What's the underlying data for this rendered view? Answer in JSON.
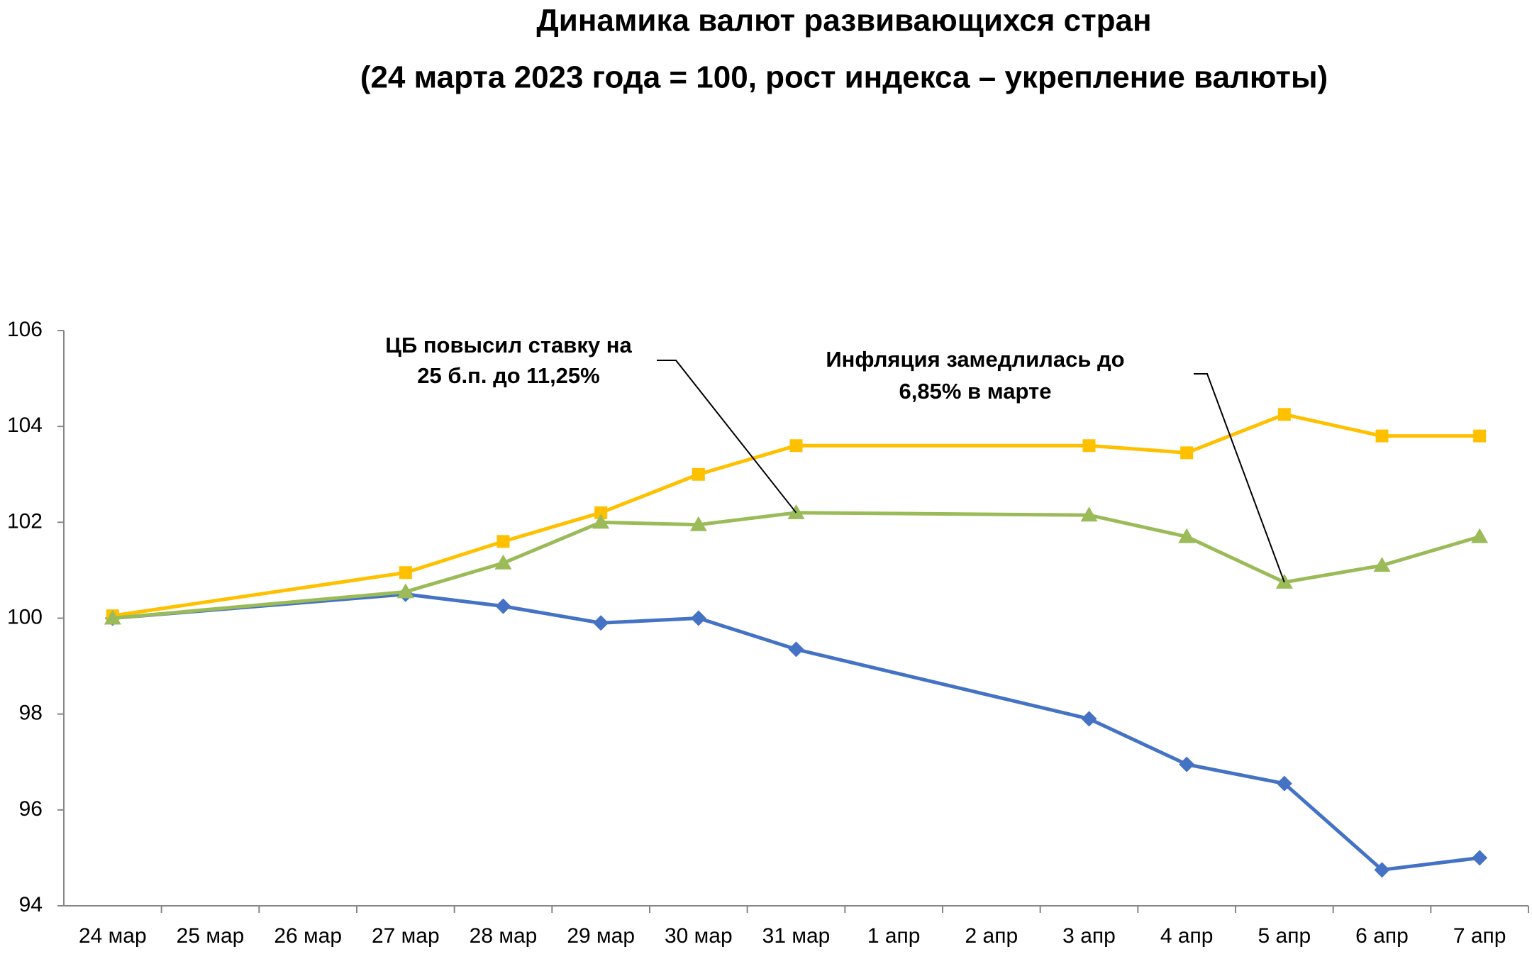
{
  "chart_data": {
    "type": "line",
    "title": [
      "Динамика валют развивающихся стран",
      "(24 марта 2023 года = 100, рост индекса – укрепление валюты)"
    ],
    "categories": [
      "24 мар",
      "25 мар",
      "26 мар",
      "27 мар",
      "28 мар",
      "29 мар",
      "30 мар",
      "31 мар",
      "1 апр",
      "2 апр",
      "3 апр",
      "4 апр",
      "5 апр",
      "6 апр",
      "7 апр"
    ],
    "series": [
      {
        "color": "#4472c4",
        "marker": "diamond",
        "x": [
          "24 мар",
          "27 мар",
          "28 мар",
          "29 мар",
          "30 мар",
          "31 мар",
          "3 апр",
          "4 апр",
          "5 апр",
          "6 апр",
          "7 апр"
        ],
        "values": [
          100,
          100.5,
          100.25,
          99.9,
          100,
          99.35,
          97.9,
          96.95,
          96.55,
          94.75,
          95
        ]
      },
      {
        "color": "#ffc000",
        "marker": "square",
        "x": [
          "24 мар",
          "27 мар",
          "28 мар",
          "29 мар",
          "30 мар",
          "31 мар",
          "3 апр",
          "4 апр",
          "5 апр",
          "6 апр",
          "7 апр"
        ],
        "values": [
          100.05,
          100.95,
          101.6,
          102.2,
          103,
          103.6,
          103.6,
          103.45,
          104.25,
          103.8,
          103.8
        ]
      },
      {
        "color": "#9bbb59",
        "marker": "triangle",
        "x": [
          "24 мар",
          "27 мар",
          "28 мар",
          "29 мар",
          "30 мар",
          "31 мар",
          "3 апр",
          "4 апр",
          "5 апр",
          "6 апр",
          "7 апр"
        ],
        "values": [
          100,
          100.55,
          101.15,
          102,
          101.95,
          102.2,
          102.15,
          101.7,
          100.75,
          101.1,
          101.7
        ]
      }
    ],
    "ylim": [
      94,
      106
    ],
    "yticks": [
      94,
      96,
      98,
      100,
      102,
      104,
      106
    ],
    "grid": false,
    "annotations": [
      {
        "text": [
          "ЦБ повысил ставку на",
          "25 б.п. до 11,25%"
        ]
      },
      {
        "text": [
          "Инфляция замедлилась до",
          "6,85% в марте"
        ]
      }
    ]
  }
}
